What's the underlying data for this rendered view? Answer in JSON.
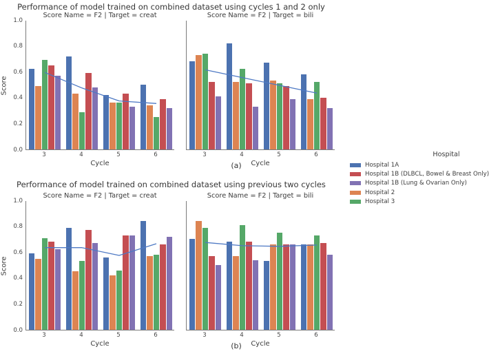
{
  "legend": {
    "title": "Hospital",
    "items": [
      {
        "label": "Hospital 1A",
        "color": "#4C72B0"
      },
      {
        "label": "Hospital 1B (DLBCL, Bowel & Breast Only)",
        "color": "#C44E52"
      },
      {
        "label": "Hospital 1B (Lung & Ovarian Only)",
        "color": "#8172B3"
      },
      {
        "label": "Hospital 2",
        "color": "#DD8452"
      },
      {
        "label": "Hospital 3",
        "color": "#55A868"
      }
    ]
  },
  "chart_data": [
    {
      "type": "bar",
      "subtype": "grouped-bars-with-trend-line",
      "title": "Performance of model trained on combined dataset using cycles 1 and 2 only",
      "caption": "(a)",
      "xlabel": "Cycle",
      "ylabel": "Score",
      "categories": [
        "3",
        "4",
        "5",
        "6"
      ],
      "yticks": [
        "0.0",
        "0.2",
        "0.4",
        "0.6",
        "0.8",
        "1.0"
      ],
      "ylim": [
        0,
        1
      ],
      "grid": false,
      "legend_position": "right-of-figure",
      "panels": [
        {
          "subtitle": "Score Name = F2 | Target = creat",
          "series": [
            {
              "name": "Hospital 1A",
              "color": "#4C72B0",
              "values": [
                0.62,
                0.72,
                0.42,
                0.5
              ]
            },
            {
              "name": "Hospital 2",
              "color": "#DD8452",
              "values": [
                0.49,
                0.43,
                0.36,
                0.34
              ]
            },
            {
              "name": "Hospital 3",
              "color": "#55A868",
              "values": [
                0.69,
                0.29,
                0.36,
                0.25
              ]
            },
            {
              "name": "Hospital 1B (DLBCL, Bowel & Breast Only)",
              "color": "#C44E52",
              "values": [
                0.65,
                0.59,
                0.43,
                0.39
              ]
            },
            {
              "name": "Hospital 1B (Lung & Ovarian Only)",
              "color": "#8172B3",
              "values": [
                0.57,
                0.48,
                0.33,
                0.32
              ]
            }
          ],
          "trend_line": {
            "color": "#4e79c4",
            "values": [
              0.6,
              0.48,
              0.38,
              0.36
            ]
          }
        },
        {
          "subtitle": "Score Name = F2 | Target = bili",
          "series": [
            {
              "name": "Hospital 1A",
              "color": "#4C72B0",
              "values": [
                0.68,
                0.82,
                0.67,
                0.58
              ]
            },
            {
              "name": "Hospital 2",
              "color": "#DD8452",
              "values": [
                0.73,
                0.52,
                0.53,
                0.39
              ]
            },
            {
              "name": "Hospital 3",
              "color": "#55A868",
              "values": [
                0.74,
                0.62,
                0.51,
                0.52
              ]
            },
            {
              "name": "Hospital 1B (DLBCL, Bowel & Breast Only)",
              "color": "#C44E52",
              "values": [
                0.52,
                0.51,
                0.49,
                0.4
              ]
            },
            {
              "name": "Hospital 1B (Lung & Ovarian Only)",
              "color": "#8172B3",
              "values": [
                0.41,
                0.33,
                0.39,
                0.32
              ]
            }
          ],
          "trend_line": {
            "color": "#4e79c4",
            "values": [
              0.62,
              0.56,
              0.5,
              0.44
            ]
          }
        }
      ]
    },
    {
      "type": "bar",
      "subtype": "grouped-bars-with-trend-line",
      "title": "Performance of model trained on combined dataset using previous two cycles",
      "caption": "(b)",
      "xlabel": "Cycle",
      "ylabel": "Score",
      "categories": [
        "3",
        "4",
        "5",
        "6"
      ],
      "yticks": [
        "0.0",
        "0.2",
        "0.4",
        "0.6",
        "0.8",
        "1.0"
      ],
      "ylim": [
        0,
        1
      ],
      "grid": false,
      "legend_position": "right-of-figure",
      "panels": [
        {
          "subtitle": "Score Name = F2 | Target = creat",
          "series": [
            {
              "name": "Hospital 1A",
              "color": "#4C72B0",
              "values": [
                0.59,
                0.79,
                0.56,
                0.84
              ]
            },
            {
              "name": "Hospital 2",
              "color": "#DD8452",
              "values": [
                0.55,
                0.45,
                0.42,
                0.57
              ]
            },
            {
              "name": "Hospital 3",
              "color": "#55A868",
              "values": [
                0.71,
                0.53,
                0.46,
                0.58
              ]
            },
            {
              "name": "Hospital 1B (DLBCL, Bowel & Breast Only)",
              "color": "#C44E52",
              "values": [
                0.68,
                0.77,
                0.73,
                0.66
              ]
            },
            {
              "name": "Hospital 1B (Lung & Ovarian Only)",
              "color": "#8172B3",
              "values": [
                0.62,
                0.67,
                0.73,
                0.72
              ]
            }
          ],
          "trend_line": {
            "color": "#4e79c4",
            "values": [
              0.64,
              0.64,
              0.58,
              0.67
            ]
          }
        },
        {
          "subtitle": "Score Name = F2 | Target = bili",
          "series": [
            {
              "name": "Hospital 1A",
              "color": "#4C72B0",
              "values": [
                0.7,
                0.68,
                0.53,
                0.66
              ]
            },
            {
              "name": "Hospital 2",
              "color": "#DD8452",
              "values": [
                0.84,
                0.57,
                0.66,
                0.66
              ]
            },
            {
              "name": "Hospital 3",
              "color": "#55A868",
              "values": [
                0.79,
                0.81,
                0.75,
                0.73
              ]
            },
            {
              "name": "Hospital 1B (DLBCL, Bowel & Breast Only)",
              "color": "#C44E52",
              "values": [
                0.57,
                0.68,
                0.66,
                0.67
              ]
            },
            {
              "name": "Hospital 1B (Lung & Ovarian Only)",
              "color": "#8172B3",
              "values": [
                0.5,
                0.54,
                0.66,
                0.58
              ]
            }
          ],
          "trend_line": {
            "color": "#4e79c4",
            "values": [
              0.68,
              0.655,
              0.65,
              0.66
            ]
          }
        }
      ]
    }
  ]
}
